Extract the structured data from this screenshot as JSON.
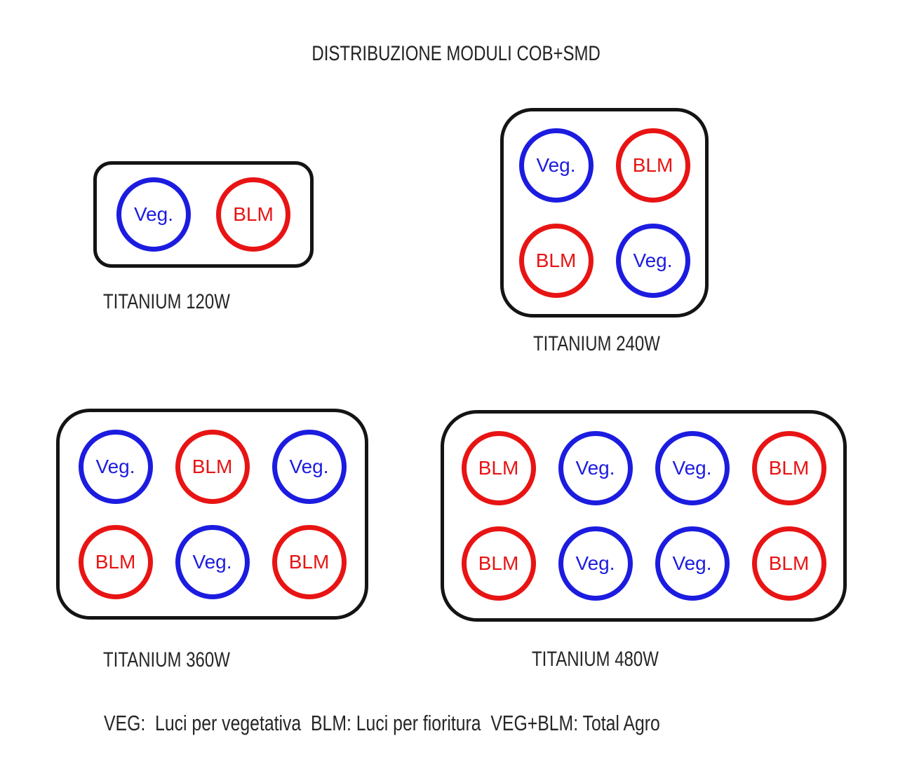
{
  "title": "DISTRIBUZIONE MODULI COB+SMD",
  "legend": "VEG:  Luci per vegetativa  BLM: Luci per fioritura  VEG+BLM: Total Agro",
  "colors": {
    "veg": "#1c1ce0",
    "blm": "#e81414",
    "outline": "#141414"
  },
  "panels": [
    {
      "label": "TITANIUM 120W",
      "modules": [
        [
          {
            "type": "veg",
            "label": "Veg."
          },
          {
            "type": "blm",
            "label": "BLM"
          }
        ]
      ]
    },
    {
      "label": "TITANIUM 240W",
      "modules": [
        [
          {
            "type": "veg",
            "label": "Veg."
          },
          {
            "type": "blm",
            "label": "BLM"
          }
        ],
        [
          {
            "type": "blm",
            "label": "BLM"
          },
          {
            "type": "veg",
            "label": "Veg."
          }
        ]
      ]
    },
    {
      "label": "TITANIUM 360W",
      "modules": [
        [
          {
            "type": "veg",
            "label": "Veg."
          },
          {
            "type": "blm",
            "label": "BLM"
          },
          {
            "type": "veg",
            "label": "Veg."
          }
        ],
        [
          {
            "type": "blm",
            "label": "BLM"
          },
          {
            "type": "veg",
            "label": "Veg."
          },
          {
            "type": "blm",
            "label": "BLM"
          }
        ]
      ]
    },
    {
      "label": "TITANIUM 480W",
      "modules": [
        [
          {
            "type": "blm",
            "label": "BLM"
          },
          {
            "type": "veg",
            "label": "Veg."
          },
          {
            "type": "veg",
            "label": "Veg."
          },
          {
            "type": "blm",
            "label": "BLM"
          }
        ],
        [
          {
            "type": "blm",
            "label": "BLM"
          },
          {
            "type": "veg",
            "label": "Veg."
          },
          {
            "type": "veg",
            "label": "Veg."
          },
          {
            "type": "blm",
            "label": "BLM"
          }
        ]
      ]
    }
  ]
}
